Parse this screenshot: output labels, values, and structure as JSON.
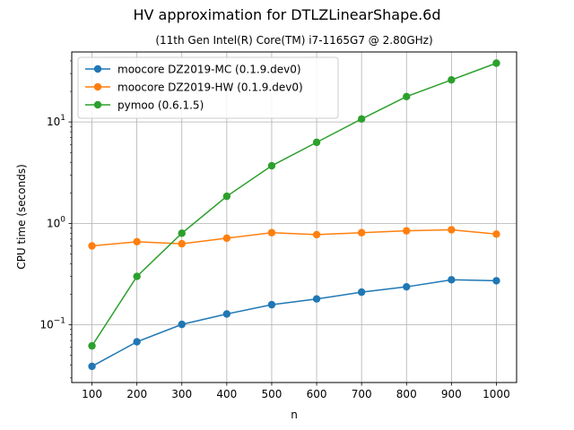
{
  "chart_data": {
    "type": "line",
    "title": "HV approximation for DTLZLinearShape.6d",
    "subtitle": "(11th Gen Intel(R) Core(TM) i7-1165G7 @ 2.80GHz)",
    "xlabel": "n",
    "ylabel": "CPU time (seconds)",
    "yscale": "log",
    "grid": true,
    "legend_position": "upper-left",
    "xlim": [
      55,
      1045
    ],
    "ylim": [
      0.027,
      49
    ],
    "x": [
      100,
      200,
      300,
      400,
      500,
      600,
      700,
      800,
      900,
      1000
    ],
    "x_tick_labels": [
      "100",
      "200",
      "300",
      "400",
      "500",
      "600",
      "700",
      "800",
      "900",
      "1000"
    ],
    "y_ticks": [
      {
        "value": 0.1,
        "base": "10",
        "exp": "−1"
      },
      {
        "value": 1,
        "base": "10",
        "exp": "0"
      },
      {
        "value": 10,
        "base": "10",
        "exp": "1"
      }
    ],
    "series": [
      {
        "name": "moocore DZ2019-MC (0.1.9.dev0)",
        "color": "#1f77b4",
        "values": [
          0.039,
          0.068,
          0.101,
          0.128,
          0.158,
          0.18,
          0.21,
          0.237,
          0.278,
          0.272
        ]
      },
      {
        "name": "moocore DZ2019-HW (0.1.9.dev0)",
        "color": "#ff7f0e",
        "values": [
          0.6,
          0.66,
          0.63,
          0.715,
          0.81,
          0.775,
          0.81,
          0.845,
          0.865,
          0.785
        ]
      },
      {
        "name": "pymoo (0.6.1.5)",
        "color": "#2ca02c",
        "values": [
          0.062,
          0.3,
          0.8,
          1.85,
          3.7,
          6.3,
          10.7,
          17.8,
          26,
          38
        ]
      }
    ]
  }
}
